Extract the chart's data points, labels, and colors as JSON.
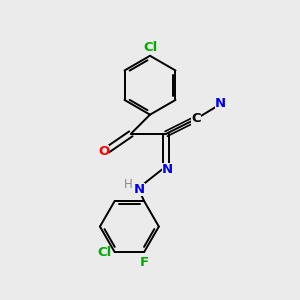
{
  "bg_color": "#ebebeb",
  "bond_color": "#000000",
  "atom_colors": {
    "Cl": "#00aa00",
    "F": "#00aa00",
    "O": "#ff0000",
    "N": "#0000ee",
    "C": "#000000",
    "H": "#888888"
  },
  "lw": 1.4,
  "fontsize": 9.5
}
